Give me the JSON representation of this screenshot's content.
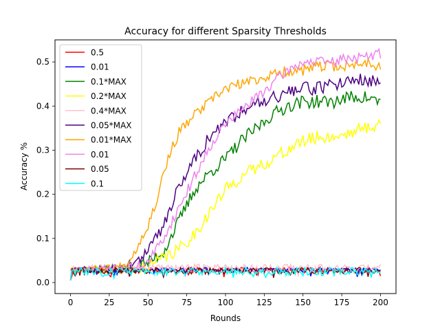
{
  "chart_data": {
    "type": "line",
    "title": "Accuracy for different Sparsity Thresholds",
    "xlabel": "Rounds",
    "ylabel": "Accuracy %",
    "xlim": [
      -10,
      210
    ],
    "ylim": [
      -0.025,
      0.55
    ],
    "xticks": [
      0,
      25,
      50,
      75,
      100,
      125,
      150,
      175,
      200
    ],
    "yticks": [
      0.0,
      0.1,
      0.2,
      0.3,
      0.4,
      0.5
    ],
    "ytick_labels": [
      "0.0",
      "0.1",
      "0.2",
      "0.3",
      "0.4",
      "0.5"
    ],
    "grid": false,
    "legend_position": "upper-left",
    "series": [
      {
        "name": "0.5",
        "color": "#ff0000",
        "kind": "flat",
        "base": 0.028,
        "amp": 0.006,
        "seed": 11
      },
      {
        "name": "0.01",
        "color": "#0000ff",
        "kind": "flat",
        "base": 0.03,
        "amp": 0.004,
        "seed": 23
      },
      {
        "name": "0.1*MAX",
        "color": "#008000",
        "kind": "curve",
        "points": [
          [
            0,
            0.03
          ],
          [
            30,
            0.03
          ],
          [
            40,
            0.035
          ],
          [
            50,
            0.045
          ],
          [
            60,
            0.07
          ],
          [
            70,
            0.14
          ],
          [
            80,
            0.21
          ],
          [
            90,
            0.25
          ],
          [
            100,
            0.28
          ],
          [
            110,
            0.32
          ],
          [
            120,
            0.35
          ],
          [
            130,
            0.38
          ],
          [
            140,
            0.4
          ],
          [
            150,
            0.41
          ],
          [
            160,
            0.41
          ],
          [
            170,
            0.41
          ],
          [
            180,
            0.42
          ],
          [
            190,
            0.42
          ],
          [
            200,
            0.41
          ]
        ],
        "noise": 0.015,
        "seed": 37
      },
      {
        "name": "0.2*MAX",
        "color": "#ffff00",
        "kind": "curve",
        "points": [
          [
            0,
            0.03
          ],
          [
            40,
            0.03
          ],
          [
            50,
            0.035
          ],
          [
            60,
            0.055
          ],
          [
            70,
            0.075
          ],
          [
            80,
            0.11
          ],
          [
            90,
            0.16
          ],
          [
            100,
            0.21
          ],
          [
            110,
            0.24
          ],
          [
            120,
            0.26
          ],
          [
            130,
            0.28
          ],
          [
            140,
            0.3
          ],
          [
            150,
            0.32
          ],
          [
            160,
            0.33
          ],
          [
            170,
            0.33
          ],
          [
            180,
            0.34
          ],
          [
            190,
            0.35
          ],
          [
            200,
            0.36
          ]
        ],
        "noise": 0.015,
        "seed": 41
      },
      {
        "name": "0.4*MAX",
        "color": "#ffc0cb",
        "kind": "flat",
        "base": 0.033,
        "amp": 0.009,
        "seed": 53
      },
      {
        "name": "0.05*MAX",
        "color": "#4b0082",
        "kind": "curve",
        "points": [
          [
            0,
            0.03
          ],
          [
            30,
            0.03
          ],
          [
            40,
            0.04
          ],
          [
            50,
            0.07
          ],
          [
            60,
            0.13
          ],
          [
            70,
            0.22
          ],
          [
            80,
            0.28
          ],
          [
            90,
            0.33
          ],
          [
            100,
            0.36
          ],
          [
            110,
            0.39
          ],
          [
            120,
            0.41
          ],
          [
            130,
            0.42
          ],
          [
            140,
            0.43
          ],
          [
            150,
            0.44
          ],
          [
            160,
            0.44
          ],
          [
            170,
            0.45
          ],
          [
            180,
            0.46
          ],
          [
            190,
            0.46
          ],
          [
            200,
            0.45
          ]
        ],
        "noise": 0.015,
        "seed": 59
      },
      {
        "name": "0.01*MAX",
        "color": "#ffa500",
        "kind": "curve",
        "points": [
          [
            0,
            0.03
          ],
          [
            30,
            0.035
          ],
          [
            35,
            0.04
          ],
          [
            40,
            0.06
          ],
          [
            50,
            0.13
          ],
          [
            55,
            0.18
          ],
          [
            60,
            0.25
          ],
          [
            65,
            0.3
          ],
          [
            70,
            0.34
          ],
          [
            80,
            0.38
          ],
          [
            90,
            0.41
          ],
          [
            100,
            0.44
          ],
          [
            110,
            0.45
          ],
          [
            120,
            0.46
          ],
          [
            130,
            0.47
          ],
          [
            140,
            0.48
          ],
          [
            150,
            0.48
          ],
          [
            160,
            0.49
          ],
          [
            170,
            0.49
          ],
          [
            180,
            0.49
          ],
          [
            190,
            0.5
          ],
          [
            200,
            0.49
          ]
        ],
        "noise": 0.012,
        "seed": 67
      },
      {
        "name": "0.01",
        "color": "#ee82ee",
        "kind": "curve",
        "points": [
          [
            0,
            0.03
          ],
          [
            40,
            0.035
          ],
          [
            50,
            0.045
          ],
          [
            60,
            0.1
          ],
          [
            70,
            0.17
          ],
          [
            80,
            0.24
          ],
          [
            90,
            0.31
          ],
          [
            100,
            0.36
          ],
          [
            110,
            0.39
          ],
          [
            120,
            0.42
          ],
          [
            130,
            0.45
          ],
          [
            140,
            0.48
          ],
          [
            150,
            0.5
          ],
          [
            160,
            0.5
          ],
          [
            170,
            0.5
          ],
          [
            180,
            0.51
          ],
          [
            190,
            0.51
          ],
          [
            200,
            0.52
          ]
        ],
        "noise": 0.012,
        "seed": 71
      },
      {
        "name": "0.05",
        "color": "#800000",
        "kind": "flat",
        "base": 0.027,
        "amp": 0.007,
        "seed": 79
      },
      {
        "name": "0.1",
        "color": "#00ffff",
        "kind": "flat",
        "base": 0.025,
        "amp": 0.009,
        "seed": 83
      }
    ]
  }
}
